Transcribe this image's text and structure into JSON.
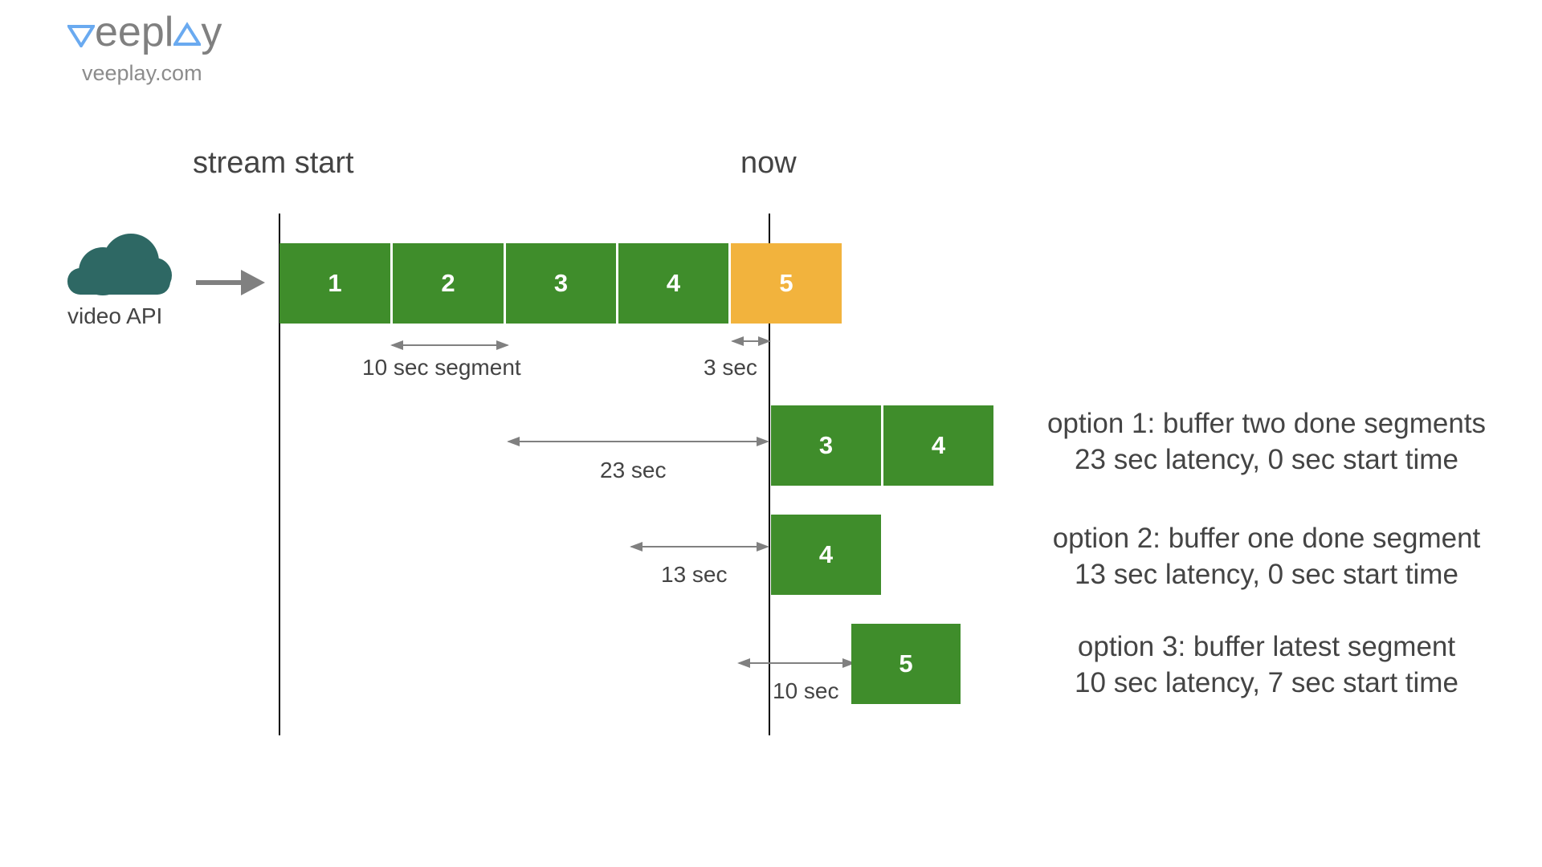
{
  "logo": {
    "wordmark_prefix": "eepl",
    "wordmark_suffix": "y",
    "url": "veeplay.com",
    "accent_color": "#6aaaf0"
  },
  "source": {
    "icon": "cloud-icon",
    "label": "video API",
    "icon_color": "#2e6864"
  },
  "markers": {
    "start_label": "stream start",
    "now_label": "now"
  },
  "colors": {
    "done_segment": "#3f8d2b",
    "current_segment": "#f2b33d",
    "arrow": "#808080"
  },
  "timeline": {
    "segments": [
      {
        "label": "1",
        "state": "done"
      },
      {
        "label": "2",
        "state": "done"
      },
      {
        "label": "3",
        "state": "done"
      },
      {
        "label": "4",
        "state": "done"
      },
      {
        "label": "5",
        "state": "current"
      }
    ],
    "segment_label": "10 sec segment",
    "partial_label": "3 sec"
  },
  "options": [
    {
      "segments": [
        "3",
        "4"
      ],
      "latency_label": "23 sec",
      "title": "option 1: buffer two done segments",
      "subtitle": "23 sec latency, 0 sec start time"
    },
    {
      "segments": [
        "4"
      ],
      "latency_label": "13 sec",
      "title": "option 2: buffer one done segment",
      "subtitle": "13 sec latency, 0 sec start time"
    },
    {
      "segments": [
        "5"
      ],
      "latency_label": "10 sec",
      "title": "option 3: buffer latest segment",
      "subtitle": "10 sec latency, 7 sec start time"
    }
  ]
}
